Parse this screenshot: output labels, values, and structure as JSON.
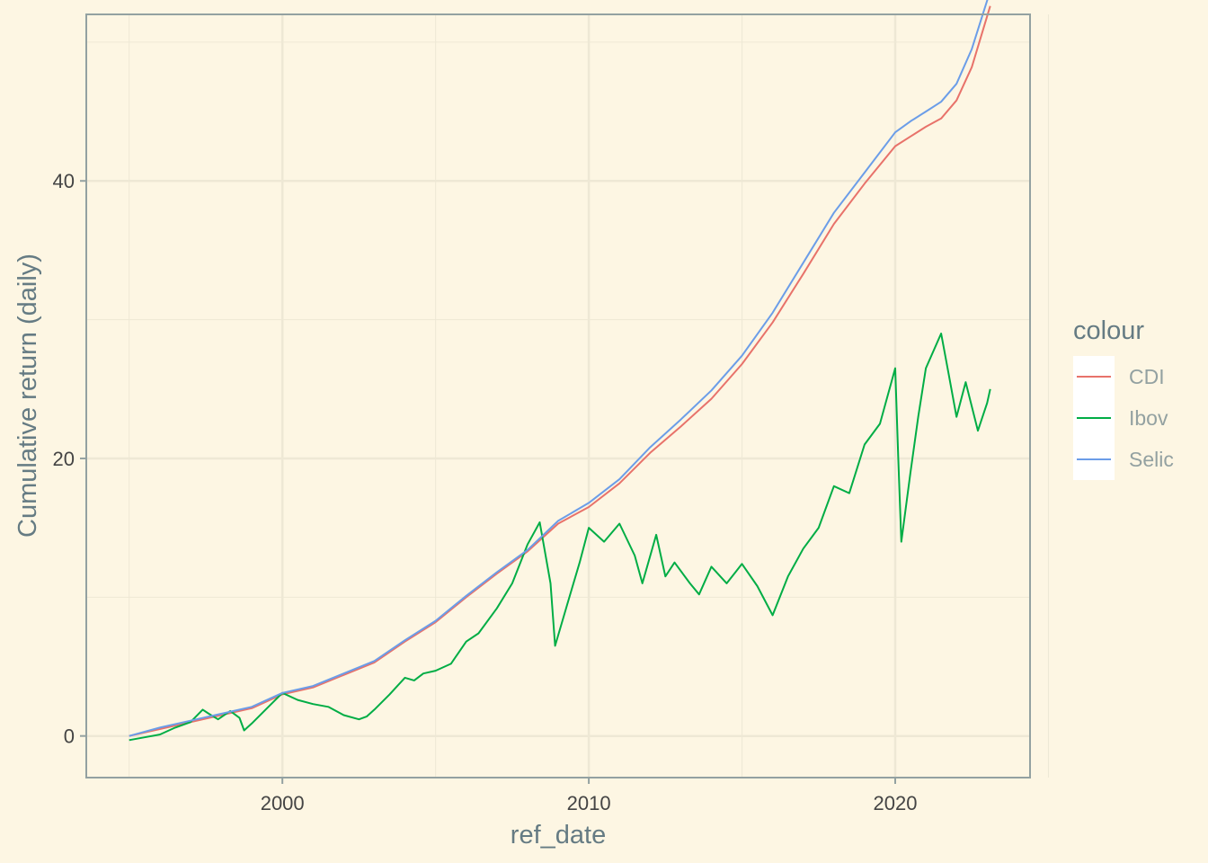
{
  "chart_data": {
    "type": "line",
    "xlabel": "ref_date",
    "ylabel": "Cumulative return (daily)",
    "xlim": [
      1993.6,
      2024.4
    ],
    "ylim": [
      -3,
      52
    ],
    "x_ticks": [
      2000,
      2010,
      2020
    ],
    "x_tick_labels": [
      "2000",
      "2010",
      "2020"
    ],
    "y_ticks": [
      0,
      20,
      40
    ],
    "y_tick_labels": [
      "0",
      "20",
      "40"
    ],
    "grid": true,
    "legend": {
      "title": "colour",
      "position": "right"
    },
    "series": [
      {
        "name": "CDI",
        "color": "#e8726a",
        "x": [
          1995.0,
          1996.0,
          1997.0,
          1998.0,
          1999.0,
          2000.0,
          2001.0,
          2002.0,
          2003.0,
          2004.0,
          2005.0,
          2006.0,
          2007.0,
          2008.0,
          2009.0,
          2010.0,
          2011.0,
          2012.0,
          2013.0,
          2014.0,
          2015.0,
          2016.0,
          2017.0,
          2018.0,
          2019.0,
          2020.0,
          2020.5,
          2021.0,
          2021.5,
          2022.0,
          2022.5,
          2023.1
        ],
        "values": [
          0.0,
          0.5,
          1.0,
          1.5,
          2.0,
          3.0,
          3.5,
          4.4,
          5.3,
          6.8,
          8.2,
          10.0,
          11.7,
          13.3,
          15.3,
          16.5,
          18.2,
          20.4,
          22.3,
          24.3,
          26.8,
          29.8,
          33.3,
          36.9,
          39.8,
          42.5,
          43.2,
          43.9,
          44.5,
          45.8,
          48.2,
          52.6
        ]
      },
      {
        "name": "Ibov",
        "color": "#00ad45",
        "x": [
          1995.0,
          1995.5,
          1996.0,
          1996.5,
          1997.0,
          1997.4,
          1997.6,
          1997.9,
          1998.3,
          1998.6,
          1998.75,
          1999.0,
          1999.5,
          2000.0,
          2000.5,
          2001.0,
          2001.5,
          2002.0,
          2002.5,
          2002.75,
          2003.0,
          2003.5,
          2004.0,
          2004.3,
          2004.6,
          2005.0,
          2005.5,
          2006.0,
          2006.4,
          2007.0,
          2007.5,
          2008.0,
          2008.4,
          2008.75,
          2008.9,
          2009.3,
          2009.7,
          2010.0,
          2010.5,
          2011.0,
          2011.5,
          2011.75,
          2012.2,
          2012.5,
          2012.8,
          2013.3,
          2013.6,
          2014.0,
          2014.5,
          2015.0,
          2015.5,
          2016.0,
          2016.5,
          2017.0,
          2017.5,
          2018.0,
          2018.5,
          2019.0,
          2019.5,
          2020.0,
          2020.1,
          2020.2,
          2020.5,
          2020.75,
          2021.0,
          2021.5,
          2021.75,
          2022.0,
          2022.3,
          2022.7,
          2023.0,
          2023.1
        ],
        "values": [
          -0.3,
          -0.1,
          0.1,
          0.6,
          1.0,
          1.9,
          1.6,
          1.2,
          1.8,
          1.3,
          0.4,
          0.9,
          2.0,
          3.1,
          2.6,
          2.3,
          2.1,
          1.5,
          1.2,
          1.4,
          1.9,
          3.0,
          4.2,
          4.0,
          4.5,
          4.7,
          5.2,
          6.8,
          7.4,
          9.2,
          11.0,
          13.8,
          15.4,
          11.0,
          6.5,
          9.5,
          12.5,
          15.0,
          14.0,
          15.3,
          13.0,
          11.0,
          14.5,
          11.5,
          12.5,
          11.0,
          10.2,
          12.2,
          11.0,
          12.4,
          10.8,
          8.7,
          11.5,
          13.5,
          15.0,
          18.0,
          17.5,
          21.0,
          22.5,
          26.5,
          20.0,
          14.0,
          19.0,
          23.0,
          26.5,
          29.0,
          26.0,
          23.0,
          25.5,
          22.0,
          24.0,
          25.0
        ]
      },
      {
        "name": "Selic",
        "color": "#6b9de8",
        "x": [
          1995.0,
          1996.0,
          1997.0,
          1998.0,
          1999.0,
          2000.0,
          2001.0,
          2002.0,
          2003.0,
          2004.0,
          2005.0,
          2006.0,
          2007.0,
          2008.0,
          2009.0,
          2010.0,
          2011.0,
          2012.0,
          2013.0,
          2014.0,
          2015.0,
          2016.0,
          2017.0,
          2018.0,
          2019.0,
          2020.0,
          2020.5,
          2021.0,
          2021.5,
          2022.0,
          2022.5,
          2023.1
        ],
        "values": [
          0.0,
          0.6,
          1.1,
          1.6,
          2.1,
          3.1,
          3.6,
          4.5,
          5.4,
          6.9,
          8.3,
          10.1,
          11.8,
          13.4,
          15.5,
          16.8,
          18.5,
          20.8,
          22.8,
          24.9,
          27.4,
          30.5,
          34.1,
          37.7,
          40.6,
          43.5,
          44.3,
          45.0,
          45.7,
          47.0,
          49.5,
          53.7
        ]
      }
    ]
  }
}
